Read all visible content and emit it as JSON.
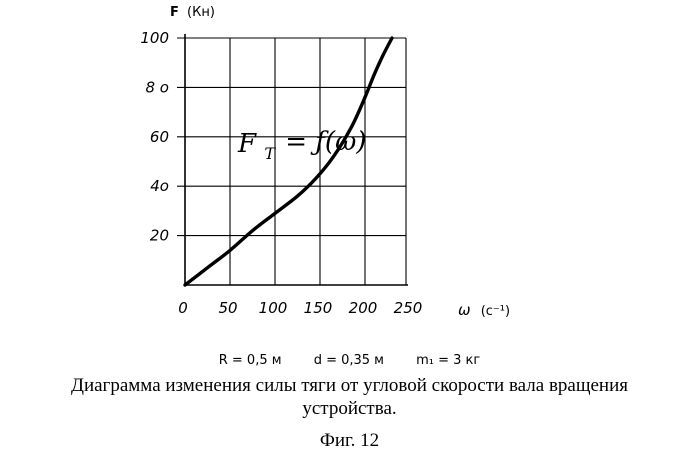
{
  "chart_data": {
    "type": "line",
    "title": "",
    "ylabel_bold": "F",
    "ylabel_unit": "(Кн)",
    "xlabel_symbol": "ω",
    "xlabel_unit": "(c⁻¹)",
    "xlim": [
      0,
      250
    ],
    "ylim": [
      0,
      100
    ],
    "xticks": [
      0,
      50,
      100,
      150,
      200,
      250
    ],
    "yticks": [
      20,
      40,
      60,
      80,
      100
    ],
    "x_tick_labels": [
      "0",
      "50",
      "100",
      "150",
      "200",
      "250"
    ],
    "y_tick_labels": [
      "20",
      "4о",
      "60",
      "8 о",
      "100"
    ],
    "grid": true,
    "annotation": "F = f(ω)",
    "annotation_main": "F",
    "annotation_sub": "T",
    "annotation_rest": "= ƒ(ω)",
    "series": [
      {
        "x": [
          0,
          25,
          50,
          75,
          100,
          125,
          145,
          165,
          185,
          200,
          210,
          220,
          230
        ],
        "y": [
          0,
          7,
          14,
          22,
          29,
          36,
          43,
          52,
          64,
          76,
          85,
          93,
          100
        ],
        "color": "#000000"
      }
    ]
  },
  "params": {
    "r": "R = 0,5 м",
    "d": "d = 0,35 м",
    "m": "m₁ = 3 кг"
  },
  "caption": {
    "line1": "Диаграмма изменения силы тяги от угловой скорости вала вращения",
    "line2": "устройства."
  },
  "figure_label": "Фиг. 12"
}
